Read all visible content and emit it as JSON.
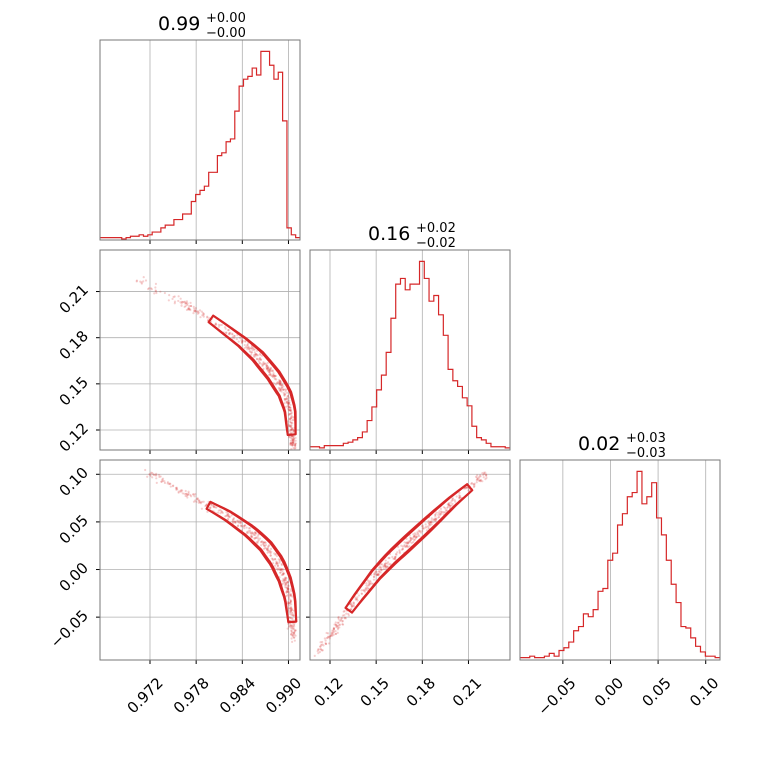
{
  "chart_data": {
    "type": "corner",
    "color": "#d62728",
    "grid": true,
    "parameters": [
      {
        "title_value": "0.99",
        "title_plus": "+0.00",
        "title_minus": "−0.00",
        "range": [
          0.9655,
          0.9915
        ]
      },
      {
        "title_value": "0.16",
        "title_plus": "+0.02",
        "title_minus": "−0.02",
        "range": [
          0.107,
          0.237
        ]
      },
      {
        "title_value": "0.02",
        "title_plus": "+0.03",
        "title_minus": "−0.03",
        "range": [
          -0.095,
          0.115
        ]
      }
    ],
    "x_ticks": [
      {
        "values": [
          0.972,
          0.978,
          0.984,
          0.99
        ],
        "labels": [
          "0.972",
          "0.978",
          "0.984",
          "0.990"
        ]
      },
      {
        "values": [
          0.12,
          0.15,
          0.18,
          0.21
        ],
        "labels": [
          "0.12",
          "0.15",
          "0.18",
          "0.21"
        ]
      },
      {
        "values": [
          -0.05,
          0.0,
          0.05,
          0.1
        ],
        "labels": [
          "−0.05",
          "0.00",
          "0.05",
          "0.10"
        ]
      }
    ],
    "y_ticks": [
      null,
      {
        "values": [
          0.12,
          0.15,
          0.18,
          0.21
        ],
        "labels": [
          "0.12",
          "0.15",
          "0.18",
          "0.21"
        ]
      },
      {
        "values": [
          -0.05,
          0.0,
          0.05,
          0.1
        ],
        "labels": [
          "−0.05",
          "0.00",
          "0.05",
          "0.10"
        ]
      }
    ],
    "histograms": [
      {
        "counts": [
          1,
          1,
          1,
          1,
          1,
          0,
          1,
          2,
          2,
          3,
          2,
          3,
          5,
          5,
          8,
          10,
          10,
          14,
          14,
          18,
          18,
          27,
          32,
          35,
          38,
          48,
          48,
          60,
          62,
          70,
          72,
          92,
          110,
          115,
          117,
          123,
          118,
          135,
          135,
          125,
          115,
          120,
          85,
          8,
          3,
          1
        ]
      },
      {
        "counts": [
          2,
          2,
          1,
          3,
          3,
          3,
          3,
          5,
          6,
          8,
          10,
          15,
          25,
          37,
          52,
          65,
          85,
          115,
          145,
          150,
          140,
          145,
          145,
          165,
          150,
          130,
          135,
          118,
          100,
          70,
          60,
          55,
          45,
          38,
          20,
          10,
          8,
          5,
          2,
          2,
          2,
          1
        ]
      },
      {
        "counts": [
          1,
          1,
          2,
          1,
          1,
          2,
          4,
          2,
          6,
          8,
          12,
          20,
          23,
          32,
          30,
          35,
          48,
          50,
          70,
          75,
          95,
          103,
          115,
          118,
          133,
          110,
          115,
          125,
          100,
          88,
          70,
          53,
          40,
          23,
          22,
          15,
          9,
          5,
          2,
          2,
          1
        ]
      }
    ],
    "pairs": [
      {
        "x_param": 0,
        "y_param": 1,
        "ridge": [
          [
            0.97,
            0.218
          ],
          [
            0.976,
            0.203
          ],
          [
            0.98,
            0.192
          ],
          [
            0.984,
            0.177
          ],
          [
            0.986,
            0.168
          ],
          [
            0.988,
            0.156
          ],
          [
            0.9895,
            0.144
          ],
          [
            0.9902,
            0.133
          ],
          [
            0.9904,
            0.118
          ],
          [
            0.9906,
            0.108
          ]
        ]
      },
      {
        "x_param": 0,
        "y_param": 2,
        "ridge": [
          [
            0.9715,
            0.103
          ],
          [
            0.976,
            0.083
          ],
          [
            0.979,
            0.07
          ],
          [
            0.982,
            0.057
          ],
          [
            0.985,
            0.04
          ],
          [
            0.987,
            0.025
          ],
          [
            0.9885,
            0.008
          ],
          [
            0.9895,
            -0.01
          ],
          [
            0.9902,
            -0.03
          ],
          [
            0.9905,
            -0.055
          ],
          [
            0.9907,
            -0.075
          ]
        ]
      },
      {
        "x_param": 1,
        "y_param": 2,
        "ridge": [
          [
            0.11,
            -0.09
          ],
          [
            0.12,
            -0.07
          ],
          [
            0.128,
            -0.052
          ],
          [
            0.138,
            -0.03
          ],
          [
            0.15,
            -0.005
          ],
          [
            0.16,
            0.012
          ],
          [
            0.17,
            0.027
          ],
          [
            0.18,
            0.042
          ],
          [
            0.19,
            0.057
          ],
          [
            0.2,
            0.072
          ],
          [
            0.212,
            0.088
          ],
          [
            0.222,
            0.102
          ]
        ]
      }
    ]
  }
}
